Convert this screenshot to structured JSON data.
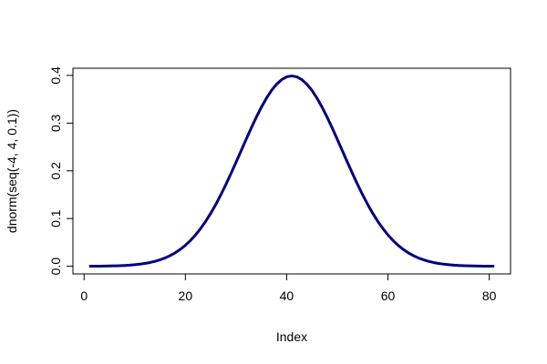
{
  "chart_data": {
    "type": "line",
    "x_label": "Index",
    "y_label": "dnorm(seq(-4, 4, 0.1))",
    "x": [
      1,
      2,
      3,
      4,
      5,
      6,
      7,
      8,
      9,
      10,
      11,
      12,
      13,
      14,
      15,
      16,
      17,
      18,
      19,
      20,
      21,
      22,
      23,
      24,
      25,
      26,
      27,
      28,
      29,
      30,
      31,
      32,
      33,
      34,
      35,
      36,
      37,
      38,
      39,
      40,
      41,
      42,
      43,
      44,
      45,
      46,
      47,
      48,
      49,
      50,
      51,
      52,
      53,
      54,
      55,
      56,
      57,
      58,
      59,
      60,
      61,
      62,
      63,
      64,
      65,
      66,
      67,
      68,
      69,
      70,
      71,
      72,
      73,
      74,
      75,
      76,
      77,
      78,
      79,
      80,
      81
    ],
    "series": [
      {
        "color": "#000080",
        "values": [
          0.0001,
          0.0002,
          0.0003,
          0.0004,
          0.0006,
          0.0009,
          0.0012,
          0.0017,
          0.0024,
          0.0033,
          0.0044,
          0.006,
          0.0079,
          0.0104,
          0.0136,
          0.0175,
          0.0224,
          0.0283,
          0.0355,
          0.044,
          0.054,
          0.0656,
          0.079,
          0.094,
          0.1109,
          0.1295,
          0.1497,
          0.1714,
          0.1942,
          0.2179,
          0.242,
          0.2661,
          0.2897,
          0.3123,
          0.3332,
          0.3521,
          0.3683,
          0.3814,
          0.391,
          0.397,
          0.3989,
          0.397,
          0.391,
          0.3814,
          0.3683,
          0.3521,
          0.3332,
          0.3123,
          0.2897,
          0.2661,
          0.242,
          0.2179,
          0.1942,
          0.1714,
          0.1497,
          0.1295,
          0.1109,
          0.094,
          0.079,
          0.0656,
          0.054,
          0.044,
          0.0355,
          0.0283,
          0.0224,
          0.0175,
          0.0136,
          0.0104,
          0.0079,
          0.006,
          0.0044,
          0.0033,
          0.0024,
          0.0017,
          0.0012,
          0.0009,
          0.0006,
          0.0004,
          0.0003,
          0.0002,
          0.0001
        ]
      }
    ],
    "xlim": [
      -2.2,
      84.2
    ],
    "xticks": [
      0,
      20,
      40,
      60,
      80
    ],
    "ylim": [
      -0.016,
      0.415
    ],
    "yticks": [
      {
        "value": 0,
        "label": "0.0"
      },
      0.1,
      0.2,
      0.3,
      0.4
    ]
  }
}
